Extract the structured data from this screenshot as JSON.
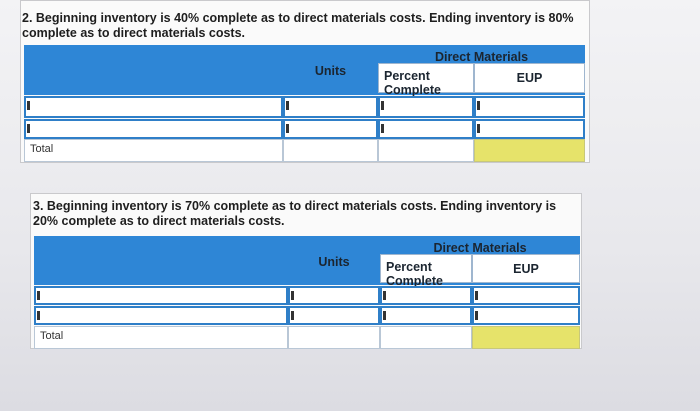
{
  "sections": [
    {
      "prompt": "2. Beginning inventory is 40% complete as to direct materials costs. Ending inventory is 80% complete as to direct materials costs.",
      "group_header": "Direct Materials",
      "columns": [
        "Units",
        "Percent Complete",
        "EUP"
      ],
      "total_label": "Total"
    },
    {
      "prompt": "3. Beginning inventory is 70% complete as to direct materials costs. Ending inventory is 20% complete as to direct materials costs.",
      "group_header": "Direct Materials",
      "columns": [
        "Units",
        "Percent Complete",
        "EUP"
      ],
      "total_label": "Total"
    }
  ]
}
